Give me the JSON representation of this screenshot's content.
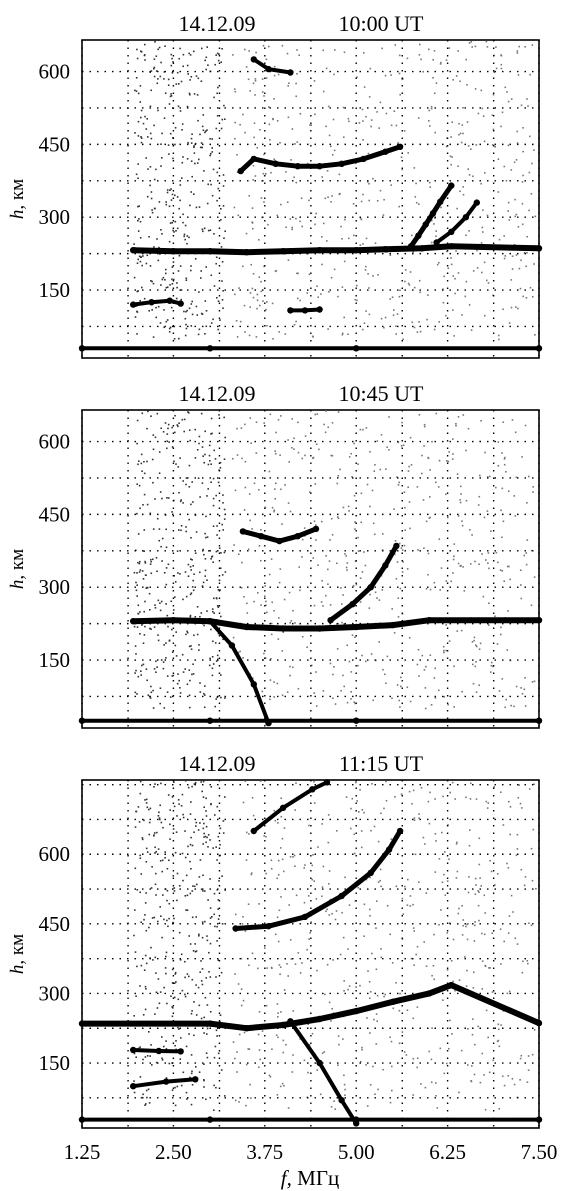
{
  "figure": {
    "x_axis_label": {
      "symbol": "f,",
      "unit": "МГц"
    },
    "x_ticks": [
      "1.25",
      "2.50",
      "3.75",
      "5.00",
      "6.25",
      "7.50"
    ]
  },
  "chart_data": [
    {
      "type": "scatter",
      "title": {
        "date": "14.12.09",
        "time": "10:00 UT"
      },
      "ylabel": {
        "symbol": "h,",
        "unit": "км"
      },
      "xlabel": "",
      "xlim": [
        1.25,
        7.5
      ],
      "ylim": [
        10,
        665
      ],
      "y_ticks": [
        150,
        300,
        450,
        600
      ],
      "grid": true,
      "series": [
        {
          "values": [
            [
              1.95,
              232
            ],
            [
              2.5,
              230
            ],
            [
              3.0,
              230
            ],
            [
              3.5,
              228
            ],
            [
              4.0,
              230
            ],
            [
              4.5,
              232
            ],
            [
              5.0,
              232
            ],
            [
              5.4,
              234
            ],
            [
              5.9,
              236
            ],
            [
              6.3,
              240
            ],
            [
              7.5,
              236
            ]
          ]
        },
        {
          "values": [
            [
              3.42,
              395
            ],
            [
              3.6,
              420
            ],
            [
              3.9,
              410
            ],
            [
              4.2,
              405
            ],
            [
              4.5,
              405
            ],
            [
              4.8,
              410
            ],
            [
              5.1,
              420
            ],
            [
              5.4,
              435
            ],
            [
              5.6,
              445
            ]
          ]
        },
        {
          "values": [
            [
              5.75,
              240
            ],
            [
              5.85,
              262
            ],
            [
              5.95,
              285
            ],
            [
              6.05,
              308
            ],
            [
              6.15,
              332
            ],
            [
              6.3,
              365
            ]
          ]
        },
        {
          "values": [
            [
              6.1,
              248
            ],
            [
              6.3,
              270
            ],
            [
              6.5,
              300
            ],
            [
              6.65,
              330
            ]
          ]
        },
        {
          "values": [
            [
              3.6,
              625
            ],
            [
              3.8,
              605
            ],
            [
              4.1,
              598
            ]
          ]
        },
        {
          "values": [
            [
              1.95,
              120
            ],
            [
              2.2,
              125
            ],
            [
              2.45,
              128
            ],
            [
              2.6,
              122
            ]
          ]
        },
        {
          "values": [
            [
              4.1,
              108
            ],
            [
              4.3,
              108
            ],
            [
              4.5,
              110
            ]
          ]
        },
        {
          "values": [
            [
              1.25,
              30
            ],
            [
              3.0,
              30
            ],
            [
              5.0,
              30
            ],
            [
              7.5,
              30
            ]
          ]
        }
      ]
    },
    {
      "type": "scatter",
      "title": {
        "date": "14.12.09",
        "time": "10:45 UT"
      },
      "ylabel": {
        "symbol": "h,",
        "unit": "км"
      },
      "xlabel": "",
      "xlim": [
        1.25,
        7.5
      ],
      "ylim": [
        10,
        665
      ],
      "y_ticks": [
        150,
        300,
        450,
        600
      ],
      "grid": true,
      "series": [
        {
          "values": [
            [
              1.95,
              230
            ],
            [
              2.5,
              232
            ],
            [
              3.0,
              230
            ],
            [
              3.5,
              218
            ],
            [
              4.0,
              215
            ],
            [
              4.5,
              215
            ],
            [
              5.0,
              218
            ],
            [
              5.5,
              222
            ],
            [
              6.0,
              232
            ],
            [
              7.5,
              232
            ]
          ]
        },
        {
          "values": [
            [
              3.45,
              415
            ],
            [
              3.7,
              405
            ],
            [
              3.95,
              395
            ],
            [
              4.2,
              405
            ],
            [
              4.45,
              420
            ]
          ]
        },
        {
          "values": [
            [
              4.65,
              232
            ],
            [
              4.95,
              265
            ],
            [
              5.2,
              300
            ],
            [
              5.4,
              345
            ],
            [
              5.55,
              385
            ]
          ]
        },
        {
          "values": [
            [
              3.0,
              230
            ],
            [
              3.3,
              180
            ],
            [
              3.6,
              100
            ],
            [
              3.8,
              20
            ]
          ]
        },
        {
          "values": [
            [
              1.25,
              25
            ],
            [
              3.0,
              25
            ],
            [
              5.0,
              25
            ],
            [
              7.5,
              25
            ]
          ]
        }
      ]
    },
    {
      "type": "scatter",
      "title": {
        "date": "14.12.09",
        "time": "11:15 UT"
      },
      "ylabel": {
        "symbol": "h,",
        "unit": "км"
      },
      "xlabel": "f, МГц",
      "xlim": [
        1.25,
        7.5
      ],
      "ylim": [
        10,
        760
      ],
      "y_ticks": [
        150,
        300,
        450,
        600
      ],
      "grid": true,
      "series": [
        {
          "values": [
            [
              1.25,
              235
            ],
            [
              3.0,
              235
            ],
            [
              3.5,
              225
            ],
            [
              4.0,
              232
            ],
            [
              4.5,
              245
            ],
            [
              5.0,
              262
            ],
            [
              5.5,
              282
            ],
            [
              6.0,
              300
            ],
            [
              6.3,
              318
            ],
            [
              7.5,
              236
            ]
          ]
        },
        {
          "values": [
            [
              3.35,
              440
            ],
            [
              3.8,
              445
            ],
            [
              4.3,
              465
            ],
            [
              4.8,
              510
            ],
            [
              5.2,
              560
            ],
            [
              5.45,
              610
            ],
            [
              5.6,
              650
            ]
          ]
        },
        {
          "values": [
            [
              3.6,
              650
            ],
            [
              4.0,
              700
            ],
            [
              4.4,
              740
            ],
            [
              4.6,
              755
            ]
          ]
        },
        {
          "values": [
            [
              1.95,
              178
            ],
            [
              2.3,
              176
            ],
            [
              2.6,
              175
            ]
          ]
        },
        {
          "values": [
            [
              1.95,
              100
            ],
            [
              2.4,
              110
            ],
            [
              2.8,
              115
            ]
          ]
        },
        {
          "values": [
            [
              4.1,
              240
            ],
            [
              4.5,
              150
            ],
            [
              4.8,
              70
            ],
            [
              5.0,
              20
            ]
          ]
        },
        {
          "values": [
            [
              1.25,
              28
            ],
            [
              3.0,
              28
            ],
            [
              5.0,
              28
            ],
            [
              7.5,
              28
            ]
          ]
        }
      ]
    }
  ]
}
